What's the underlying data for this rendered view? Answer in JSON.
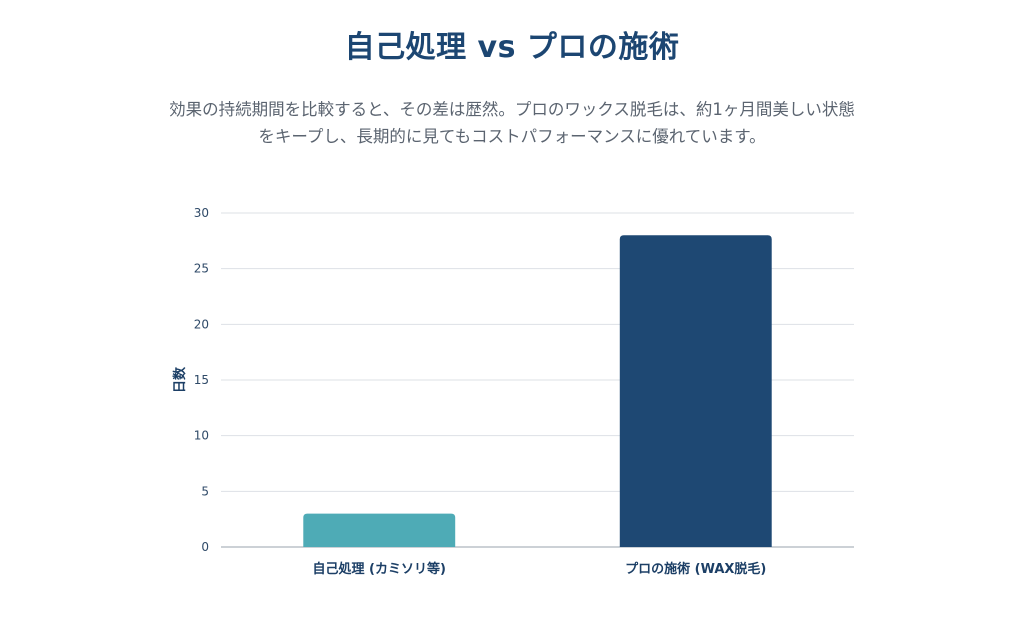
{
  "chart_data": {
    "type": "bar",
    "title": "自己処理 vs プロの施術",
    "subtitle_lines": [
      "効果の持続期間を比較すると、その差は歴然。プロのワックス脱毛は、約1ヶ月間美しい状態",
      "をキープし、長期的に見てもコストパフォーマンスに優れています。"
    ],
    "categories": [
      "自己処理 (カミソリ等)",
      "プロの施術 (WAX脱毛)"
    ],
    "values": [
      3,
      28
    ],
    "colors": [
      "#4eabb6",
      "#1e4873"
    ],
    "ylabel": "日数",
    "xlabel": "",
    "ylim": [
      0,
      30
    ],
    "yticks": [
      0,
      5,
      10,
      15,
      20,
      25,
      30
    ],
    "grid": true,
    "legend": "none"
  }
}
